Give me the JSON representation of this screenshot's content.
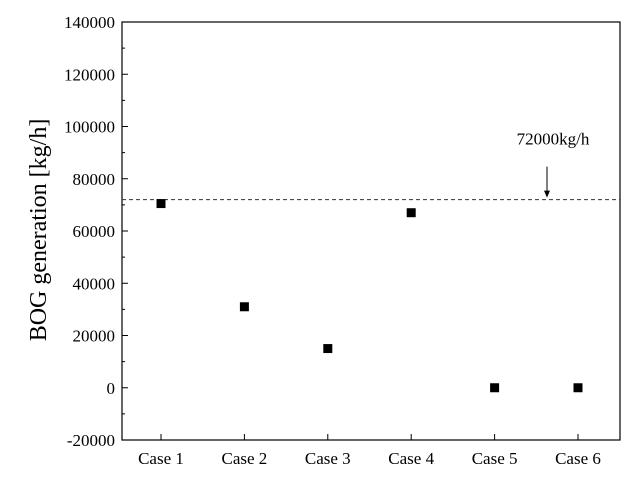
{
  "chart_data": {
    "type": "scatter",
    "title": "",
    "xlabel": "",
    "ylabel": "BOG generation [kg/h]",
    "categories": [
      "Case 1",
      "Case 2",
      "Case 3",
      "Case 4",
      "Case 5",
      "Case 6"
    ],
    "series": [
      {
        "values": [
          70500,
          31000,
          15000,
          67000,
          0,
          0
        ],
        "marker": "square",
        "color": "#000000"
      }
    ],
    "ylim": [
      -20000,
      140000
    ],
    "yticks": [
      -20000,
      0,
      20000,
      40000,
      60000,
      80000,
      100000,
      120000,
      140000
    ],
    "ytick_labels": [
      "-20000",
      "0",
      "20000",
      "40000",
      "60000",
      "80000",
      "100000",
      "120000",
      "140000"
    ],
    "reference_line": {
      "value": 72000,
      "style": "dashed",
      "label": "72000kg/h"
    },
    "grid": false,
    "legend": "none"
  }
}
